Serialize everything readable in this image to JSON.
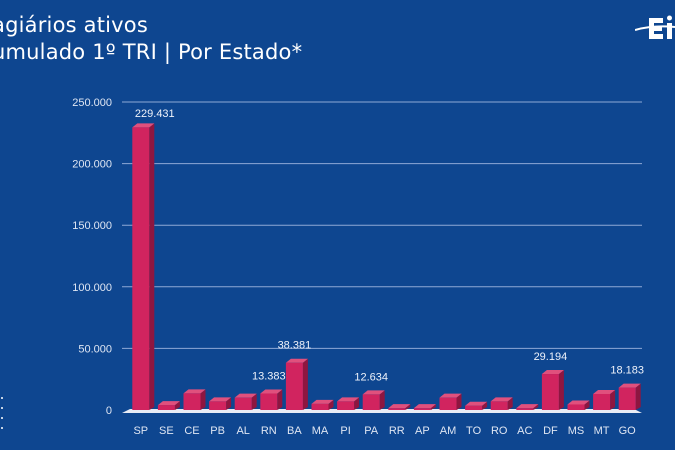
{
  "header": {
    "title_line1": "agiários ativos",
    "title_line2": "umulado 1º TRI | Por Estado*"
  },
  "colors": {
    "background": "#0e4690",
    "bar": "#d1245f",
    "grid": "#8fa9d6"
  },
  "icons": {
    "logo": "brand-logo",
    "dots": "vertical-dots-decoration"
  },
  "chart_data": {
    "type": "bar",
    "title": "",
    "xlabel": "",
    "ylabel": "",
    "ylim": [
      0,
      250000
    ],
    "yticks": [
      "0",
      "50.000",
      "100.000",
      "150.000",
      "200.000",
      "250.000"
    ],
    "ytick_values": [
      0,
      50000,
      100000,
      150000,
      200000,
      250000
    ],
    "grid": true,
    "categories": [
      "SP",
      "SE",
      "CE",
      "PB",
      "AL",
      "RN",
      "BA",
      "MA",
      "PI",
      "PA",
      "RR",
      "AP",
      "AM",
      "TO",
      "RO",
      "AC",
      "DF",
      "MS",
      "MT",
      "GO"
    ],
    "values": [
      229431,
      4000,
      13500,
      7000,
      10000,
      13383,
      38381,
      5000,
      7000,
      12634,
      1500,
      1500,
      10000,
      3500,
      7000,
      1500,
      29194,
      4500,
      13000,
      18183
    ],
    "data_labels": {
      "0": "229.431",
      "5": "13.383",
      "6": "38.381",
      "9": "12.634",
      "16": "29.194",
      "19": "18.183"
    }
  }
}
